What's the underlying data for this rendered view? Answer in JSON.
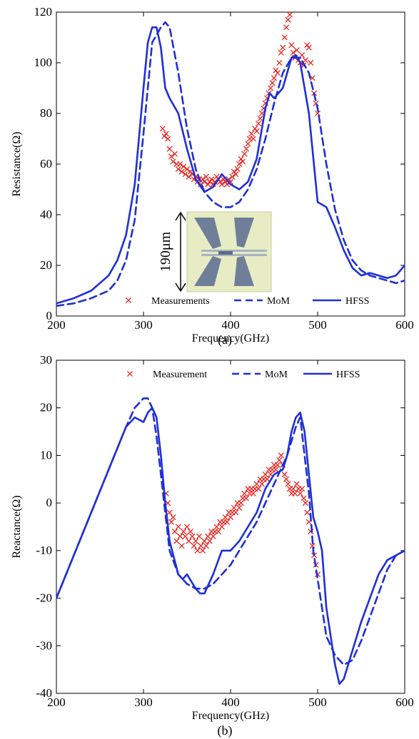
{
  "chart_data": [
    {
      "type": "line",
      "panel_label": "(a)",
      "xlabel": "Frequency(GHz)",
      "ylabel": "Resistance(Ω)",
      "xlim": [
        200,
        600
      ],
      "ylim": [
        0,
        120
      ],
      "xticks": [
        200,
        300,
        400,
        500,
        600
      ],
      "yticks": [
        0,
        20,
        40,
        60,
        80,
        100,
        120
      ],
      "legend_position": "bottom",
      "grid": false,
      "inset": {
        "type": "photo",
        "scale_label": "190μm"
      },
      "series": [
        {
          "name": "Measurements",
          "style": "markers-x",
          "color": "#e8241f",
          "points": [
            [
              322,
              74
            ],
            [
              324,
              71
            ],
            [
              326,
              72
            ],
            [
              328,
              70
            ],
            [
              330,
              66
            ],
            [
              332,
              63
            ],
            [
              334,
              61
            ],
            [
              336,
              64
            ],
            [
              338,
              60
            ],
            [
              340,
              58
            ],
            [
              342,
              60
            ],
            [
              344,
              57
            ],
            [
              346,
              59
            ],
            [
              348,
              56
            ],
            [
              350,
              58
            ],
            [
              352,
              55
            ],
            [
              354,
              57
            ],
            [
              356,
              56
            ],
            [
              358,
              54
            ],
            [
              360,
              55
            ],
            [
              362,
              53
            ],
            [
              364,
              54
            ],
            [
              366,
              52
            ],
            [
              368,
              54
            ],
            [
              370,
              53
            ],
            [
              372,
              55
            ],
            [
              374,
              52
            ],
            [
              376,
              53
            ],
            [
              378,
              54
            ],
            [
              380,
              52
            ],
            [
              382,
              53
            ],
            [
              384,
              55
            ],
            [
              386,
              54
            ],
            [
              388,
              53
            ],
            [
              390,
              52
            ],
            [
              392,
              54
            ],
            [
              394,
              53
            ],
            [
              396,
              52
            ],
            [
              398,
              54
            ],
            [
              400,
              53
            ],
            [
              402,
              55
            ],
            [
              404,
              57
            ],
            [
              406,
              56
            ],
            [
              408,
              58
            ],
            [
              410,
              60
            ],
            [
              412,
              62
            ],
            [
              414,
              61
            ],
            [
              416,
              64
            ],
            [
              418,
              66
            ],
            [
              420,
              68
            ],
            [
              422,
              70
            ],
            [
              424,
              72
            ],
            [
              426,
              70
            ],
            [
              428,
              74
            ],
            [
              430,
              73
            ],
            [
              432,
              76
            ],
            [
              434,
              78
            ],
            [
              436,
              80
            ],
            [
              438,
              82
            ],
            [
              440,
              84
            ],
            [
              442,
              86
            ],
            [
              444,
              88
            ],
            [
              446,
              90
            ],
            [
              448,
              92
            ],
            [
              450,
              94
            ],
            [
              452,
              97
            ],
            [
              454,
              96
            ],
            [
              456,
              100
            ],
            [
              458,
              104
            ],
            [
              460,
              106
            ],
            [
              462,
              110
            ],
            [
              464,
              114
            ],
            [
              466,
              117
            ],
            [
              468,
              119
            ],
            [
              470,
              107
            ],
            [
              472,
              104
            ],
            [
              474,
              102
            ],
            [
              476,
              105
            ],
            [
              478,
              101
            ],
            [
              480,
              100
            ],
            [
              482,
              103
            ],
            [
              484,
              99
            ],
            [
              486,
              101
            ],
            [
              488,
              107
            ],
            [
              490,
              106
            ],
            [
              492,
              100
            ],
            [
              494,
              94
            ],
            [
              496,
              88
            ],
            [
              498,
              84
            ],
            [
              500,
              80
            ]
          ]
        },
        {
          "name": "MoM",
          "style": "dashed",
          "color": "#1f2fd6",
          "x": [
            200,
            220,
            240,
            260,
            270,
            280,
            290,
            300,
            310,
            320,
            325,
            330,
            340,
            350,
            360,
            370,
            380,
            390,
            400,
            410,
            420,
            430,
            440,
            450,
            460,
            470,
            480,
            490,
            500,
            510,
            520,
            530,
            540,
            550,
            560,
            570,
            580,
            590,
            600
          ],
          "y": [
            4,
            5,
            7,
            10,
            14,
            22,
            38,
            72,
            108,
            114,
            116,
            114,
            96,
            74,
            58,
            49,
            45,
            43,
            43,
            45,
            50,
            58,
            70,
            84,
            96,
            102,
            102,
            96,
            82,
            60,
            42,
            30,
            22,
            18,
            16,
            15,
            14,
            13,
            14
          ]
        },
        {
          "name": "HFSS",
          "style": "solid",
          "color": "#1f2fd6",
          "x": [
            200,
            220,
            240,
            260,
            270,
            280,
            290,
            300,
            305,
            310,
            315,
            320,
            325,
            330,
            340,
            350,
            360,
            370,
            380,
            390,
            400,
            410,
            420,
            430,
            440,
            445,
            450,
            460,
            470,
            475,
            480,
            490,
            500,
            510,
            520,
            530,
            540,
            550,
            560,
            570,
            580,
            590,
            600
          ],
          "y": [
            5,
            7,
            10,
            16,
            22,
            32,
            52,
            90,
            108,
            114,
            114,
            106,
            90,
            86,
            80,
            66,
            54,
            49,
            51,
            56,
            52,
            50,
            53,
            62,
            82,
            88,
            86,
            90,
            102,
            103,
            100,
            80,
            45,
            43,
            35,
            26,
            19,
            16,
            17,
            16,
            15,
            16,
            20
          ]
        }
      ]
    },
    {
      "type": "line",
      "panel_label": "(b)",
      "xlabel": "Frequency(GHz)",
      "ylabel": "Reactance(Ω)",
      "xlim": [
        200,
        600
      ],
      "ylim": [
        -40,
        30
      ],
      "xticks": [
        200,
        300,
        400,
        500,
        600
      ],
      "yticks": [
        -40,
        -30,
        -20,
        -10,
        0,
        10,
        20,
        30
      ],
      "legend_position": "top",
      "grid": false,
      "series": [
        {
          "name": "Measurement",
          "style": "markers-x",
          "color": "#e8241f",
          "points": [
            [
              326,
              2
            ],
            [
              328,
              0
            ],
            [
              330,
              -2
            ],
            [
              332,
              -4
            ],
            [
              334,
              -3
            ],
            [
              336,
              -6
            ],
            [
              338,
              -8
            ],
            [
              340,
              -5
            ],
            [
              342,
              -7
            ],
            [
              344,
              -9
            ],
            [
              346,
              -6
            ],
            [
              348,
              -7
            ],
            [
              350,
              -5
            ],
            [
              352,
              -8
            ],
            [
              354,
              -6
            ],
            [
              356,
              -7
            ],
            [
              358,
              -9
            ],
            [
              360,
              -8
            ],
            [
              362,
              -10
            ],
            [
              364,
              -7
            ],
            [
              366,
              -9
            ],
            [
              368,
              -10
            ],
            [
              370,
              -8
            ],
            [
              372,
              -9
            ],
            [
              374,
              -7
            ],
            [
              376,
              -8
            ],
            [
              378,
              -6
            ],
            [
              380,
              -7
            ],
            [
              382,
              -6
            ],
            [
              384,
              -5
            ],
            [
              386,
              -6
            ],
            [
              388,
              -4
            ],
            [
              390,
              -5
            ],
            [
              392,
              -4
            ],
            [
              394,
              -3
            ],
            [
              396,
              -4
            ],
            [
              398,
              -2
            ],
            [
              400,
              -3
            ],
            [
              402,
              -2
            ],
            [
              404,
              -1
            ],
            [
              406,
              -2
            ],
            [
              408,
              0
            ],
            [
              410,
              -1
            ],
            [
              412,
              0
            ],
            [
              414,
              1
            ],
            [
              416,
              2
            ],
            [
              418,
              1
            ],
            [
              420,
              3
            ],
            [
              422,
              2
            ],
            [
              424,
              3
            ],
            [
              426,
              2
            ],
            [
              428,
              3
            ],
            [
              430,
              4
            ],
            [
              432,
              3
            ],
            [
              434,
              5
            ],
            [
              436,
              4
            ],
            [
              438,
              5
            ],
            [
              440,
              6
            ],
            [
              442,
              5
            ],
            [
              444,
              7
            ],
            [
              446,
              6
            ],
            [
              448,
              7
            ],
            [
              450,
              8
            ],
            [
              452,
              7
            ],
            [
              454,
              8
            ],
            [
              456,
              9
            ],
            [
              458,
              10
            ],
            [
              460,
              8
            ],
            [
              462,
              6
            ],
            [
              464,
              5
            ],
            [
              466,
              4
            ],
            [
              468,
              3
            ],
            [
              470,
              2
            ],
            [
              472,
              3
            ],
            [
              474,
              2
            ],
            [
              476,
              4
            ],
            [
              478,
              3
            ],
            [
              480,
              2
            ],
            [
              482,
              3
            ],
            [
              484,
              1
            ],
            [
              486,
              0
            ],
            [
              488,
              -2
            ],
            [
              490,
              -4
            ],
            [
              492,
              -6
            ],
            [
              494,
              -9
            ],
            [
              496,
              -11
            ],
            [
              498,
              -13
            ],
            [
              500,
              -15
            ]
          ]
        },
        {
          "name": "MoM",
          "style": "dashed",
          "color": "#1f2fd6",
          "x": [
            200,
            220,
            240,
            260,
            280,
            290,
            300,
            305,
            310,
            315,
            320,
            325,
            330,
            340,
            350,
            360,
            370,
            380,
            390,
            400,
            410,
            420,
            430,
            440,
            450,
            460,
            465,
            470,
            475,
            480,
            485,
            490,
            495,
            500,
            505,
            510,
            520,
            530,
            540,
            550,
            560,
            570,
            580,
            590,
            600
          ],
          "y": [
            -20,
            -11,
            -2,
            7,
            16,
            20,
            22,
            22,
            20,
            14,
            6,
            -2,
            -10,
            -15,
            -17,
            -18,
            -18,
            -17,
            -15,
            -13,
            -10,
            -7,
            -4,
            0,
            4,
            8,
            10,
            13,
            16,
            18,
            10,
            2,
            -10,
            -16,
            -22,
            -28,
            -32,
            -34,
            -33,
            -29,
            -24,
            -19,
            -14,
            -11,
            -10
          ]
        },
        {
          "name": "HFSS",
          "style": "solid",
          "color": "#1f2fd6",
          "x": [
            200,
            220,
            240,
            260,
            280,
            290,
            300,
            305,
            310,
            315,
            320,
            325,
            330,
            340,
            345,
            350,
            360,
            365,
            370,
            380,
            390,
            400,
            410,
            420,
            430,
            440,
            450,
            460,
            465,
            470,
            475,
            480,
            485,
            490,
            495,
            500,
            505,
            510,
            520,
            525,
            530,
            540,
            550,
            560,
            570,
            580,
            590,
            600
          ],
          "y": [
            -20,
            -11,
            -2,
            7,
            16,
            18,
            17,
            19,
            20,
            18,
            10,
            0,
            -8,
            -15,
            -16,
            -15,
            -18,
            -19,
            -19,
            -15,
            -10,
            -10,
            -8,
            -5,
            -2,
            3,
            6,
            7,
            10,
            15,
            18,
            19,
            15,
            6,
            -3,
            -6,
            -10,
            -22,
            -34,
            -38,
            -37,
            -31,
            -25,
            -20,
            -15,
            -12,
            -11,
            -10
          ]
        }
      ]
    }
  ]
}
